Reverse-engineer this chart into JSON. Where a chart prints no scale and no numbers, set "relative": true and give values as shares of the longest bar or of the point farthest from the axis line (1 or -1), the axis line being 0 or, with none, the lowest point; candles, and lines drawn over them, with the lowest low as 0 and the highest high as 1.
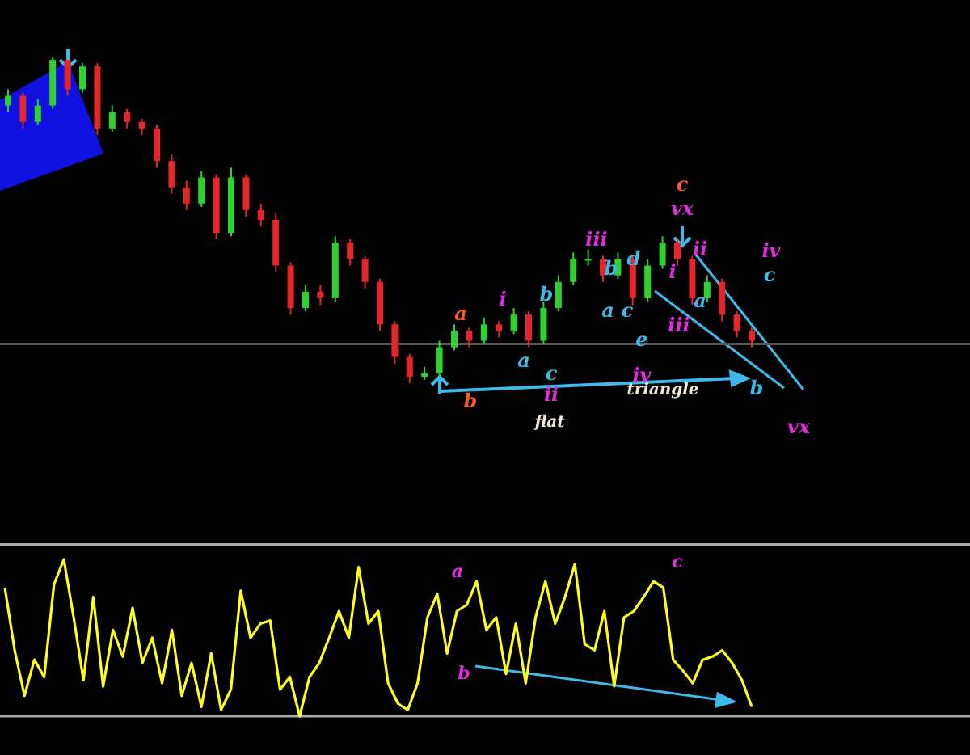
{
  "chart_data": [
    {
      "type": "candlestick",
      "relative": true,
      "categories": [
        null,
        null,
        null,
        null,
        null,
        null,
        null,
        null,
        null,
        null,
        null,
        null,
        null,
        null,
        null,
        null,
        null,
        null,
        null,
        null,
        null,
        null,
        null,
        null,
        null,
        null,
        null,
        null,
        null,
        null,
        null,
        null,
        null,
        null,
        null,
        null,
        null,
        null,
        null,
        null,
        null,
        null,
        null,
        null,
        null,
        null,
        null,
        null,
        null,
        null,
        null
      ],
      "ohlc": [
        [
          0.85,
          0.9,
          0.83,
          0.88
        ],
        [
          0.88,
          0.89,
          0.78,
          0.8
        ],
        [
          0.8,
          0.87,
          0.79,
          0.85
        ],
        [
          0.85,
          1.0,
          0.84,
          0.99
        ],
        [
          0.99,
          0.99,
          0.88,
          0.9
        ],
        [
          0.9,
          0.98,
          0.89,
          0.97
        ],
        [
          0.97,
          0.98,
          0.76,
          0.78
        ],
        [
          0.78,
          0.85,
          0.77,
          0.83
        ],
        [
          0.83,
          0.84,
          0.78,
          0.8
        ],
        [
          0.8,
          0.81,
          0.76,
          0.78
        ],
        [
          0.78,
          0.79,
          0.66,
          0.68
        ],
        [
          0.68,
          0.7,
          0.58,
          0.6
        ],
        [
          0.6,
          0.62,
          0.53,
          0.55
        ],
        [
          0.55,
          0.65,
          0.54,
          0.63
        ],
        [
          0.63,
          0.64,
          0.44,
          0.46
        ],
        [
          0.46,
          0.66,
          0.45,
          0.63
        ],
        [
          0.63,
          0.64,
          0.51,
          0.53
        ],
        [
          0.53,
          0.55,
          0.48,
          0.5
        ],
        [
          0.5,
          0.52,
          0.34,
          0.36
        ],
        [
          0.36,
          0.37,
          0.21,
          0.23
        ],
        [
          0.23,
          0.3,
          0.22,
          0.28
        ],
        [
          0.28,
          0.3,
          0.24,
          0.26
        ],
        [
          0.26,
          0.45,
          0.25,
          0.43
        ],
        [
          0.43,
          0.44,
          0.36,
          0.38
        ],
        [
          0.38,
          0.39,
          0.29,
          0.31
        ],
        [
          0.31,
          0.32,
          0.16,
          0.18
        ],
        [
          0.18,
          0.19,
          0.06,
          0.08
        ],
        [
          0.08,
          0.09,
          0.0,
          0.02
        ],
        [
          0.02,
          0.05,
          0.01,
          0.03
        ],
        [
          0.03,
          0.13,
          0.02,
          0.11
        ],
        [
          0.11,
          0.18,
          0.1,
          0.16
        ],
        [
          0.16,
          0.17,
          0.11,
          0.13
        ],
        [
          0.13,
          0.2,
          0.12,
          0.18
        ],
        [
          0.18,
          0.19,
          0.14,
          0.16
        ],
        [
          0.16,
          0.23,
          0.15,
          0.21
        ],
        [
          0.21,
          0.22,
          0.11,
          0.13
        ],
        [
          0.13,
          0.25,
          0.12,
          0.23
        ],
        [
          0.23,
          0.33,
          0.22,
          0.31
        ],
        [
          0.31,
          0.4,
          0.3,
          0.38
        ],
        [
          0.38,
          0.41,
          0.36,
          0.38
        ],
        [
          0.38,
          0.39,
          0.31,
          0.33
        ],
        [
          0.33,
          0.4,
          0.32,
          0.38
        ],
        [
          0.38,
          0.39,
          0.24,
          0.26
        ],
        [
          0.26,
          0.38,
          0.25,
          0.36
        ],
        [
          0.36,
          0.45,
          0.35,
          0.43
        ],
        [
          0.43,
          0.44,
          0.36,
          0.38
        ],
        [
          0.38,
          0.39,
          0.24,
          0.26
        ],
        [
          0.26,
          0.33,
          0.25,
          0.31
        ],
        [
          0.31,
          0.32,
          0.19,
          0.21
        ],
        [
          0.21,
          0.22,
          0.14,
          0.16
        ],
        [
          0.16,
          0.17,
          0.11,
          0.13
        ]
      ],
      "ref_lines": [
        {
          "axis": "y",
          "value": 0.12,
          "color": "#555555"
        }
      ],
      "annotations": [
        "a",
        "b",
        "i",
        "b",
        "a",
        "c",
        "ii",
        "iii",
        "b",
        "d",
        "a",
        "c",
        "e",
        "iv",
        "iii",
        "i",
        "a",
        "c",
        "vx",
        "ii",
        "iv",
        "c",
        "b",
        "vx",
        "triangle",
        "flat"
      ]
    },
    {
      "type": "line",
      "relative": true,
      "categories": [
        null,
        null,
        null,
        null,
        null,
        null,
        null,
        null,
        null,
        null,
        null,
        null,
        null,
        null,
        null,
        null,
        null,
        null,
        null,
        null,
        null,
        null,
        null,
        null,
        null,
        null,
        null,
        null,
        null,
        null,
        null,
        null,
        null,
        null,
        null,
        null,
        null,
        null,
        null,
        null,
        null,
        null,
        null,
        null,
        null,
        null,
        null,
        null,
        null,
        null,
        null,
        null,
        null,
        null,
        null,
        null,
        null,
        null,
        null,
        null,
        null,
        null,
        null,
        null,
        null,
        null,
        null,
        null,
        null,
        null,
        null,
        null,
        null,
        null,
        null,
        null,
        null
      ],
      "series": [
        {
          "color": "#ffff1a",
          "values": [
            0.82,
            0.42,
            0.13,
            0.36,
            0.25,
            0.84,
            1,
            0.63,
            0.23,
            0.76,
            0.19,
            0.55,
            0.38,
            0.69,
            0.34,
            0.5,
            0.21,
            0.55,
            0.13,
            0.34,
            0.06,
            0.4,
            0.04,
            0.17,
            0.8,
            0.5,
            0.59,
            0.61,
            0.17,
            0.25,
            0,
            0.25,
            0.34,
            0.5,
            0.67,
            0.5,
            0.95,
            0.59,
            0.67,
            0.21,
            0.08,
            0.04,
            0.21,
            0.63,
            0.78,
            0.4,
            0.67,
            0.71,
            0.86,
            0.55,
            0.63,
            0.27,
            0.59,
            0.21,
            0.63,
            0.86,
            0.59,
            0.76,
            0.97,
            0.46,
            0.42,
            0.67,
            0.19,
            0.63,
            0.67,
            0.76,
            0.86,
            0.82,
            0.36,
            0.29,
            0.21,
            0.36,
            0.38,
            0.42,
            0.34,
            0.23,
            0.06
          ]
        }
      ],
      "annotations": [
        "a",
        "c",
        "b"
      ]
    }
  ]
}
